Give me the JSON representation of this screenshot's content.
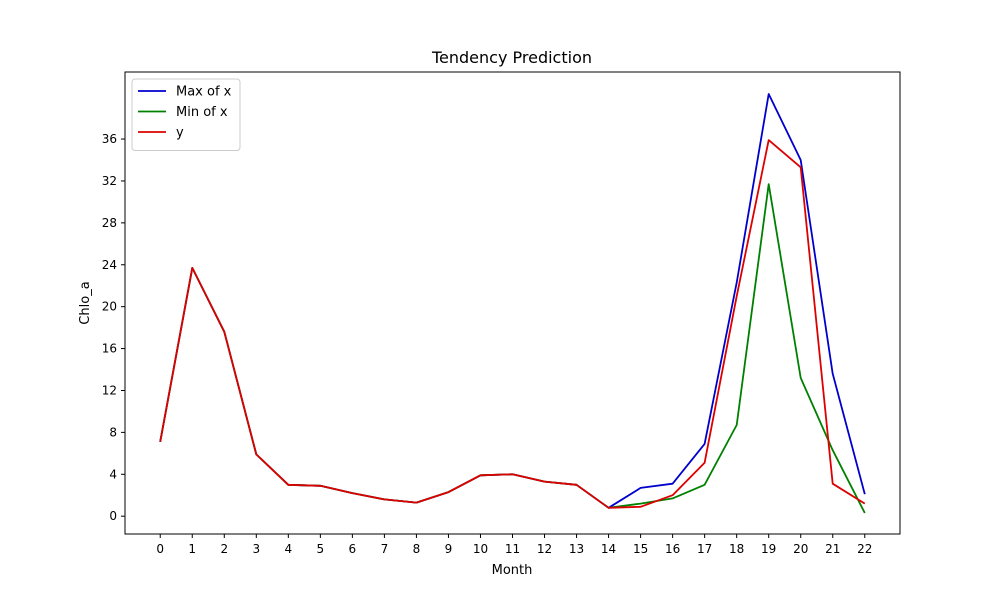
{
  "chart_data": {
    "type": "line",
    "title": "Tendency Prediction",
    "xlabel": "Month",
    "ylabel": "Chlo_a",
    "x": [
      0,
      1,
      2,
      3,
      4,
      5,
      6,
      7,
      8,
      9,
      10,
      11,
      12,
      13,
      14,
      15,
      16,
      17,
      18,
      19,
      20,
      21,
      22
    ],
    "xlim": [
      -1.1,
      23.1
    ],
    "ylim": [
      -1.7,
      42.4
    ],
    "yticks": [
      0,
      4,
      8,
      12,
      16,
      20,
      24,
      28,
      32,
      36
    ],
    "grid": false,
    "legend_position": "top-left",
    "series": [
      {
        "name": "Max of x",
        "color": "#0000cc",
        "values": [
          7.1,
          23.7,
          17.6,
          5.9,
          3.0,
          2.9,
          2.2,
          1.6,
          1.3,
          2.3,
          3.9,
          4.0,
          3.3,
          3.0,
          0.8,
          2.7,
          3.1,
          6.9,
          22.3,
          40.3,
          34.0,
          13.6,
          2.1
        ]
      },
      {
        "name": "Min of x",
        "color": "#008000",
        "values": [
          7.1,
          23.7,
          17.6,
          5.9,
          3.0,
          2.9,
          2.2,
          1.6,
          1.3,
          2.3,
          3.9,
          4.0,
          3.3,
          3.0,
          0.8,
          1.2,
          1.7,
          3.0,
          8.7,
          31.7,
          13.2,
          6.3,
          0.3
        ]
      },
      {
        "name": "y",
        "color": "#dd0000",
        "values": [
          7.1,
          23.7,
          17.6,
          5.9,
          3.0,
          2.9,
          2.2,
          1.6,
          1.3,
          2.3,
          3.9,
          4.0,
          3.3,
          3.0,
          0.8,
          0.9,
          2.0,
          5.1,
          21.0,
          35.9,
          33.3,
          3.1,
          1.2
        ]
      }
    ]
  }
}
